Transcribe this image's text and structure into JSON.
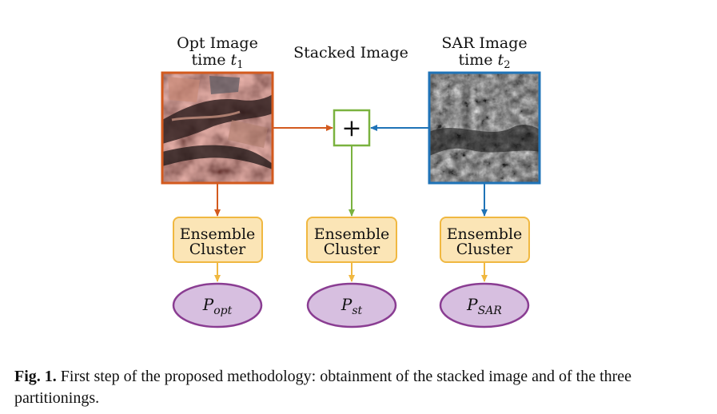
{
  "labels": {
    "opt_line1": "Opt Image",
    "opt_line2_prefix": "time ",
    "opt_var": "t",
    "opt_sub": "1",
    "stacked": "Stacked Image",
    "sar_line1": "SAR Image",
    "sar_line2_prefix": "time ",
    "sar_var": "t",
    "sar_sub": "2"
  },
  "stack_operator": "+",
  "clusters": [
    {
      "line1": "Ensemble",
      "line2": "Cluster"
    },
    {
      "line1": "Ensemble",
      "line2": "Cluster"
    },
    {
      "line1": "Ensemble",
      "line2": "Cluster"
    }
  ],
  "partitions": [
    {
      "main": "P",
      "sub": "opt"
    },
    {
      "main": "P",
      "sub": "st"
    },
    {
      "main": "P",
      "sub": "SAR"
    }
  ],
  "colors": {
    "opt": "#d35a1e",
    "stacked": "#7ab23f",
    "sar": "#1f73b7",
    "cluster_fill": "#fbe5b6",
    "cluster_border": "#f0b841",
    "ellipse_fill": "#d7bfe0",
    "ellipse_border": "#8a3d92"
  },
  "caption": {
    "label": "Fig. 1.",
    "text": " First step of the proposed methodology: obtainment of the stacked image and of the three partitionings."
  }
}
